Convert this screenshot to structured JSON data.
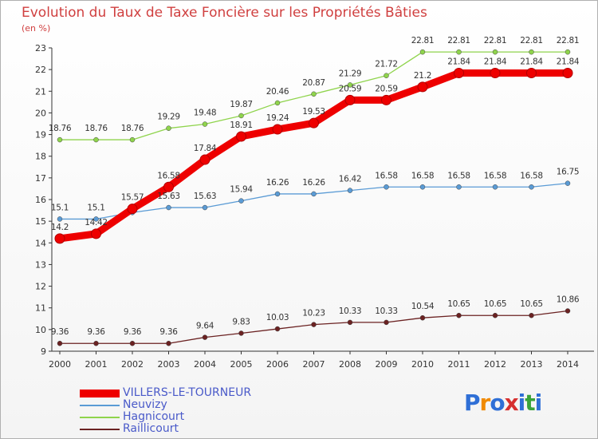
{
  "title": "Evolution du Taux de Taxe Foncière sur les Propriétés Bâties",
  "unit_label": "(en %)",
  "logo": {
    "text": "Proxiti"
  },
  "legend": [
    {
      "label": "VILLERS-LE-TOURNEUR",
      "color": "#ee0000"
    },
    {
      "label": "Neuvizy",
      "color": "#5a9bd5"
    },
    {
      "label": "Hagnicourt",
      "color": "#8fd44c"
    },
    {
      "label": "Raillicourt",
      "color": "#6b2222"
    }
  ],
  "chart_data": {
    "type": "line",
    "title": "Evolution du Taux de Taxe Foncière sur les Propriétés Bâties",
    "ylabel": "(en %)",
    "x": [
      2000,
      2001,
      2002,
      2003,
      2004,
      2005,
      2006,
      2007,
      2008,
      2009,
      2010,
      2011,
      2012,
      2013,
      2014
    ],
    "ylim": [
      9,
      23
    ],
    "yticks": [
      9,
      10,
      11,
      12,
      13,
      14,
      15,
      16,
      17,
      18,
      19,
      20,
      21,
      22,
      23
    ],
    "grid": false,
    "series": [
      {
        "name": "VILLERS-LE-TOURNEUR",
        "color": "#ee0000",
        "values": [
          14.2,
          14.42,
          15.57,
          16.58,
          17.84,
          18.91,
          19.24,
          19.53,
          20.59,
          20.59,
          21.2,
          21.84,
          21.84,
          21.84,
          21.84
        ]
      },
      {
        "name": "Neuvizy",
        "color": "#5a9bd5",
        "values": [
          15.1,
          15.1,
          15.4,
          15.63,
          15.63,
          15.94,
          16.26,
          16.26,
          16.42,
          16.58,
          16.58,
          16.58,
          16.58,
          16.58,
          16.75
        ]
      },
      {
        "name": "Hagnicourt",
        "color": "#8fd44c",
        "values": [
          18.76,
          18.76,
          18.76,
          19.29,
          19.48,
          19.87,
          20.46,
          20.87,
          21.29,
          21.72,
          22.81,
          22.81,
          22.81,
          22.81,
          22.81
        ]
      },
      {
        "name": "Raillicourt",
        "color": "#6b2222",
        "values": [
          9.36,
          9.36,
          9.36,
          9.36,
          9.64,
          9.83,
          10.03,
          10.23,
          10.33,
          10.33,
          10.54,
          10.65,
          10.65,
          10.65,
          10.86
        ]
      }
    ],
    "data_labels": {
      "VILLERS-LE-TOURNEUR": [
        "14.2",
        "14.42",
        "15.57",
        "16.58",
        "17.84",
        "18.91",
        "19.24",
        "19.53",
        "20.59",
        "20.59",
        "21.2",
        "21.84",
        "21.84",
        "21.84",
        "21.84"
      ],
      "Neuvizy": [
        "15.1",
        "15.1",
        "",
        "15.63",
        "15.63",
        "15.94",
        "16.26",
        "16.26",
        "16.42",
        "16.58",
        "16.58",
        "16.58",
        "16.58",
        "16.58",
        "16.75"
      ],
      "Hagnicourt": [
        "18.76",
        "18.76",
        "18.76",
        "19.29",
        "19.48",
        "19.87",
        "20.46",
        "20.87",
        "21.29",
        "21.72",
        "22.81",
        "22.81",
        "22.81",
        "22.81",
        "22.81"
      ],
      "Raillicourt": [
        "9.36",
        "9.36",
        "9.36",
        "9.36",
        "9.64",
        "9.83",
        "10.03",
        "10.23",
        "10.33",
        "10.33",
        "10.54",
        "10.65",
        "10.65",
        "10.65",
        "10.86"
      ]
    }
  }
}
